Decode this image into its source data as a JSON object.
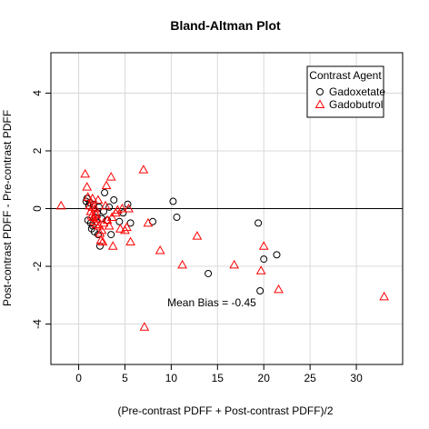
{
  "chart_data": {
    "type": "scatter",
    "title": "Bland-Altman Plot",
    "xlabel": "(Pre-contrast PDFF + Post-contrast PDFF)/2",
    "ylabel": "Post-contrast PDFF - Pre-contrast PDFF",
    "xlim": [
      -3,
      35
    ],
    "ylim": [
      -5.4,
      5.4
    ],
    "x_ticks": [
      0,
      5,
      10,
      15,
      20,
      25,
      30
    ],
    "y_ticks": [
      -4,
      -2,
      0,
      2,
      4
    ],
    "grid": true,
    "reference_line_y": 0,
    "legend": {
      "title": "Contrast Agent",
      "position": "top-right"
    },
    "annotation": "Mean Bias = -0.45",
    "series": [
      {
        "name": "Gadoxetate",
        "marker": "circle",
        "color": "#000000",
        "points": [
          [
            0.8,
            0.25
          ],
          [
            0.9,
            0.35
          ],
          [
            1.1,
            0.1
          ],
          [
            1.2,
            0.2
          ],
          [
            1.0,
            -0.4
          ],
          [
            1.3,
            -0.5
          ],
          [
            1.5,
            -0.6
          ],
          [
            1.4,
            -0.7
          ],
          [
            1.7,
            -0.8
          ],
          [
            1.8,
            -0.3
          ],
          [
            2.0,
            -0.15
          ],
          [
            2.1,
            -0.9
          ],
          [
            2.3,
            -1.3
          ],
          [
            2.5,
            -0.35
          ],
          [
            2.7,
            -0.1
          ],
          [
            2.8,
            0.55
          ],
          [
            3.1,
            -0.4
          ],
          [
            3.3,
            0.05
          ],
          [
            3.5,
            -0.9
          ],
          [
            3.8,
            0.3
          ],
          [
            4.4,
            -0.45
          ],
          [
            4.8,
            -0.15
          ],
          [
            5.3,
            0.15
          ],
          [
            5.6,
            -0.5
          ],
          [
            8.0,
            -0.45
          ],
          [
            10.2,
            0.25
          ],
          [
            10.6,
            -0.3
          ],
          [
            14.0,
            -2.25
          ],
          [
            19.4,
            -0.5
          ],
          [
            19.6,
            -2.85
          ],
          [
            20.0,
            -1.75
          ],
          [
            21.4,
            -1.6
          ],
          [
            1.6,
            0.15
          ],
          [
            2.2,
            0.05
          ]
        ]
      },
      {
        "name": "Gadobutrol",
        "marker": "triangle",
        "color": "#ff0000",
        "points": [
          [
            -1.9,
            0.1
          ],
          [
            0.7,
            1.2
          ],
          [
            0.9,
            0.75
          ],
          [
            1.0,
            0.4
          ],
          [
            1.2,
            0.1
          ],
          [
            1.3,
            -0.1
          ],
          [
            1.4,
            -0.25
          ],
          [
            1.5,
            0.05
          ],
          [
            1.6,
            -0.3
          ],
          [
            1.7,
            -0.45
          ],
          [
            1.8,
            0.0
          ],
          [
            1.9,
            -0.2
          ],
          [
            2.0,
            -0.35
          ],
          [
            2.1,
            0.3
          ],
          [
            2.2,
            -0.6
          ],
          [
            2.3,
            -0.85
          ],
          [
            2.4,
            -1.1
          ],
          [
            2.6,
            -1.15
          ],
          [
            2.7,
            -0.5
          ],
          [
            2.9,
            0.1
          ],
          [
            3.0,
            0.8
          ],
          [
            3.1,
            -0.4
          ],
          [
            3.3,
            -0.6
          ],
          [
            3.5,
            1.1
          ],
          [
            3.6,
            -0.3
          ],
          [
            3.7,
            -1.3
          ],
          [
            4.0,
            -0.15
          ],
          [
            4.2,
            -0.05
          ],
          [
            4.5,
            -0.7
          ],
          [
            4.7,
            0.0
          ],
          [
            5.0,
            -0.75
          ],
          [
            5.2,
            -0.65
          ],
          [
            5.4,
            0.0
          ],
          [
            5.6,
            -1.15
          ],
          [
            7.0,
            1.35
          ],
          [
            7.1,
            -4.1
          ],
          [
            7.5,
            -0.5
          ],
          [
            8.8,
            -1.45
          ],
          [
            11.2,
            -1.95
          ],
          [
            12.8,
            -0.95
          ],
          [
            16.8,
            -1.95
          ],
          [
            19.7,
            -2.15
          ],
          [
            20.0,
            -1.3
          ],
          [
            21.6,
            -2.8
          ],
          [
            33.0,
            -3.05
          ],
          [
            1.5,
            0.35
          ],
          [
            1.9,
            -0.55
          ],
          [
            2.5,
            -0.75
          ]
        ]
      }
    ]
  }
}
